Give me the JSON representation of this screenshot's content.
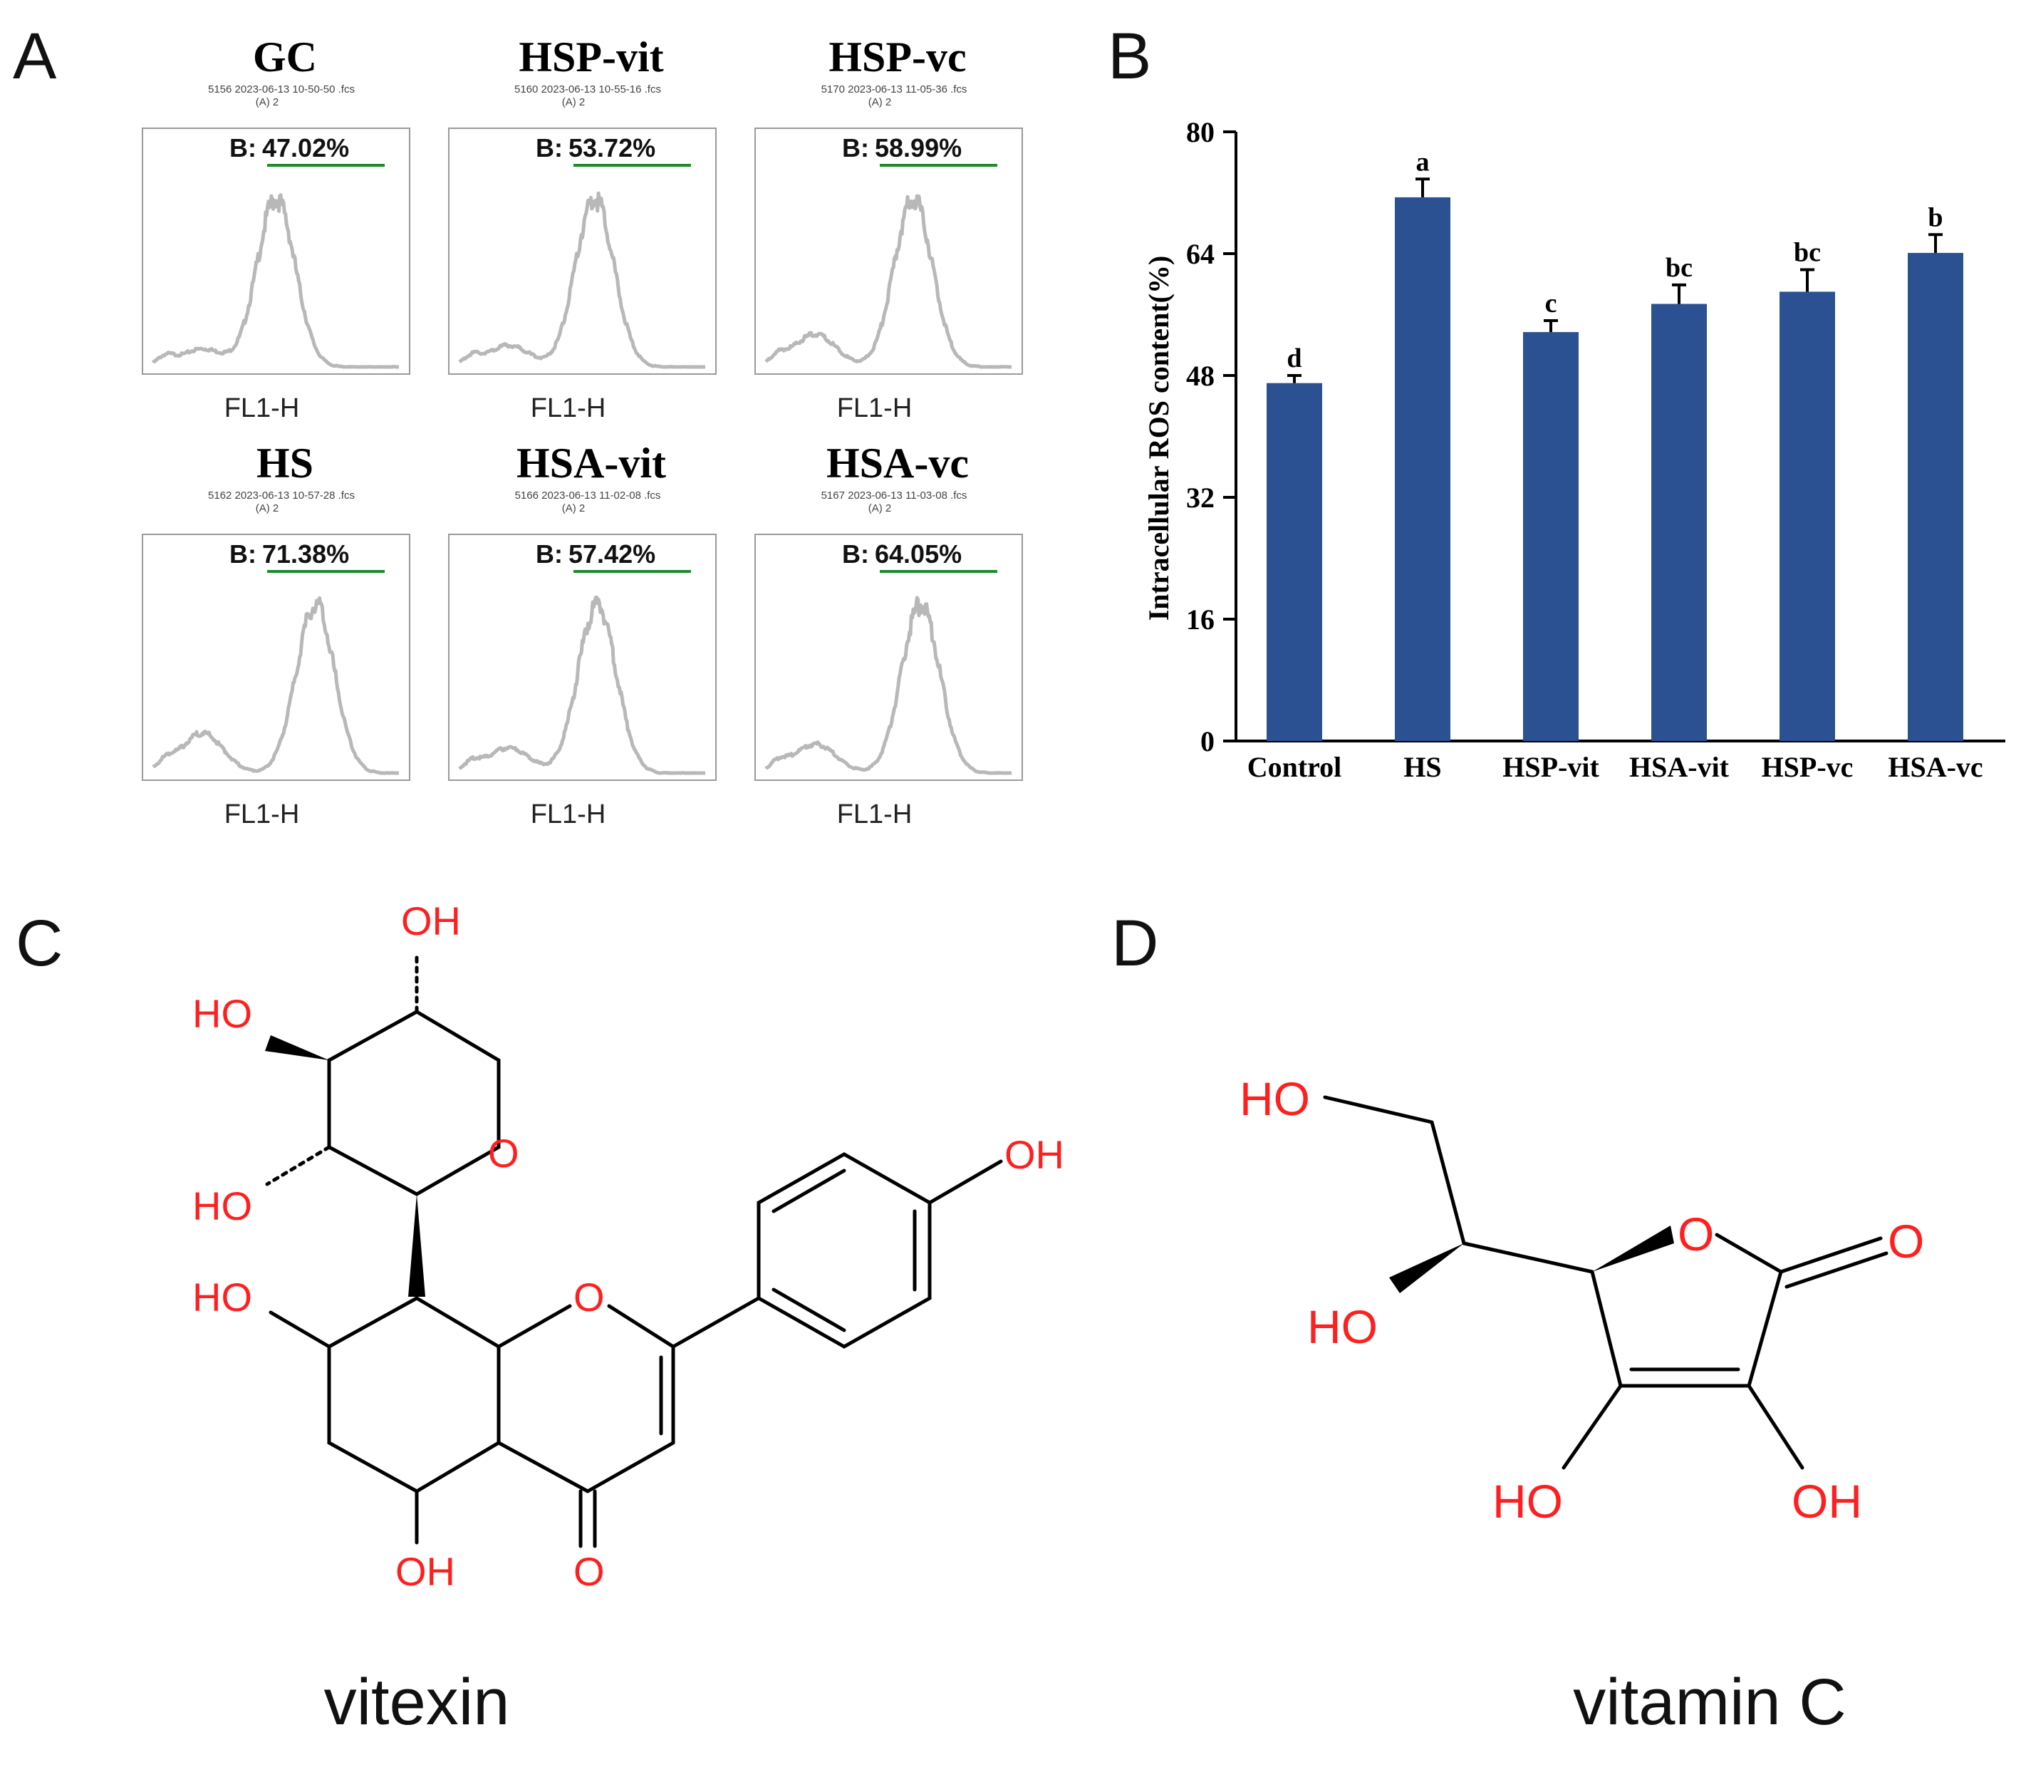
{
  "panels": {
    "a": "A",
    "b": "B",
    "c": "C",
    "d": "D"
  },
  "histograms": [
    {
      "title": "GC",
      "meta": "5156 2023-06-13 10-50-50 .fcs",
      "sub": "(A) 2",
      "gate_prefix": "B:",
      "gate_value": "47.02%",
      "x_label": "FL1-H",
      "peak_position": 0.5,
      "low_shoulder": 0.1
    },
    {
      "title": "HSP-vit",
      "meta": "5160 2023-06-13 10-55-16 .fcs",
      "sub": "(A) 2",
      "gate_prefix": "B:",
      "gate_value": "53.72%",
      "x_label": "FL1-H",
      "peak_position": 0.55,
      "low_shoulder": 0.12
    },
    {
      "title": "HSP-vc",
      "meta": "5170 2023-06-13 11-05-36 .fcs",
      "sub": "(A) 2",
      "gate_prefix": "B:",
      "gate_value": "58.99%",
      "x_label": "FL1-H",
      "peak_position": 0.6,
      "low_shoulder": 0.18
    },
    {
      "title": "HS",
      "meta": "5162 2023-06-13 10-57-28 .fcs",
      "sub": "(A) 2",
      "gate_prefix": "B:",
      "gate_value": "71.38%",
      "x_label": "FL1-H",
      "peak_position": 0.66,
      "low_shoulder": 0.22
    },
    {
      "title": "HSA-vit",
      "meta": "5166 2023-06-13 11-02-08 .fcs",
      "sub": "(A) 2",
      "gate_prefix": "B:",
      "gate_value": "57.42%",
      "x_label": "FL1-H",
      "peak_position": 0.56,
      "low_shoulder": 0.14
    },
    {
      "title": "HSA-vc",
      "meta": "5167 2023-06-13 11-03-08 .fcs",
      "sub": "(A) 2",
      "gate_prefix": "B:",
      "gate_value": "64.05%",
      "x_label": "FL1-H",
      "peak_position": 0.63,
      "low_shoulder": 0.16
    }
  ],
  "chart_data": {
    "type": "bar",
    "title": "",
    "xlabel": "",
    "ylabel": "Intracellular ROS content(%)",
    "categories": [
      "Control",
      "HS",
      "HSP-vit",
      "HSA-vit",
      "HSP-vc",
      "HSA-vc"
    ],
    "values": [
      47.0,
      71.4,
      53.7,
      57.4,
      59.0,
      64.1
    ],
    "errors": [
      1.0,
      2.4,
      1.5,
      2.5,
      2.9,
      2.4
    ],
    "significance": [
      "d",
      "a",
      "c",
      "bc",
      "bc",
      "b"
    ],
    "ylim": [
      0,
      80
    ],
    "yticks": [
      "0",
      "16",
      "32",
      "48",
      "64",
      "80"
    ],
    "bar_color": "#2b5192",
    "grid": false
  },
  "vitexin": {
    "atoms": {
      "oh_top": "OH",
      "ho_left": "HO",
      "ring_o_sugar": "O",
      "ho_hash": "HO",
      "ho_ring": "HO",
      "ring_o": "O",
      "oh_phenol": "OH",
      "oh_bottom": "OH",
      "carbonyl_o": "O"
    },
    "name": "vitexin"
  },
  "vitamin_c": {
    "atoms": {
      "ho_top": "HO",
      "ho_wedge": "HO",
      "ring_o": "O",
      "carbonyl_o": "O",
      "ho_bottom_left": "HO",
      "oh_bottom_right": "OH"
    },
    "name": "vitamin C"
  }
}
